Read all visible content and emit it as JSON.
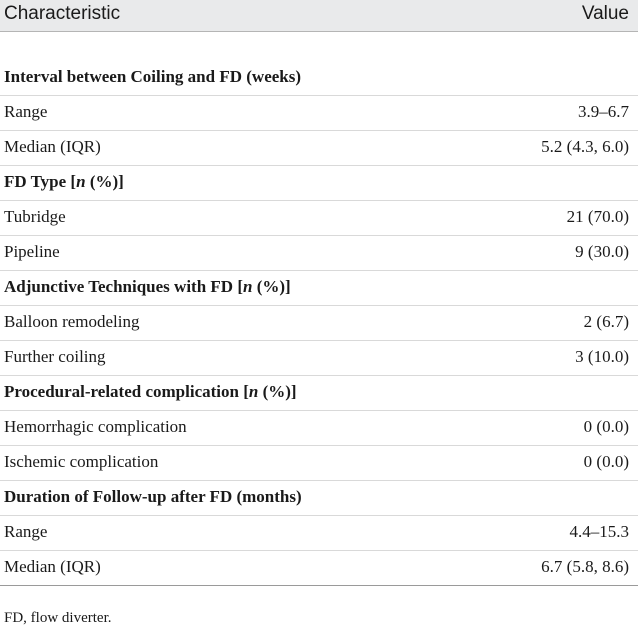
{
  "header": {
    "characteristic": "Characteristic",
    "value": "Value"
  },
  "rows": [
    {
      "label": "Interval between Coiling and FD (weeks)",
      "value": "",
      "section": true
    },
    {
      "label": "Range",
      "value": "3.9–6.7"
    },
    {
      "label": "Median (IQR)",
      "value": "5.2 (4.3, 6.0)"
    },
    {
      "label": "FD Type [",
      "label_em": "n",
      "label_tail": " (%)]",
      "value": "",
      "section": true
    },
    {
      "label": "Tubridge",
      "value": "21 (70.0)"
    },
    {
      "label": "Pipeline",
      "value": "9 (30.0)"
    },
    {
      "label": "Adjunctive Techniques with FD [",
      "label_em": "n",
      "label_tail": " (%)]",
      "value": "",
      "section": true
    },
    {
      "label": "Balloon remodeling",
      "value": "2 (6.7)"
    },
    {
      "label": "Further coiling",
      "value": "3 (10.0)"
    },
    {
      "label": "Procedural-related complication [",
      "label_em": "n",
      "label_tail": " (%)]",
      "value": "",
      "section": true
    },
    {
      "label": "Hemorrhagic complication",
      "value": "0 (0.0)"
    },
    {
      "label": "Ischemic complication",
      "value": "0 (0.0)"
    },
    {
      "label": "Duration of Follow-up after FD (months)",
      "value": "",
      "section": true
    },
    {
      "label": "Range",
      "value": "4.4–15.3"
    },
    {
      "label": "Median (IQR)",
      "value": "6.7 (5.8, 8.6)"
    }
  ],
  "footnote": "FD, flow diverter."
}
